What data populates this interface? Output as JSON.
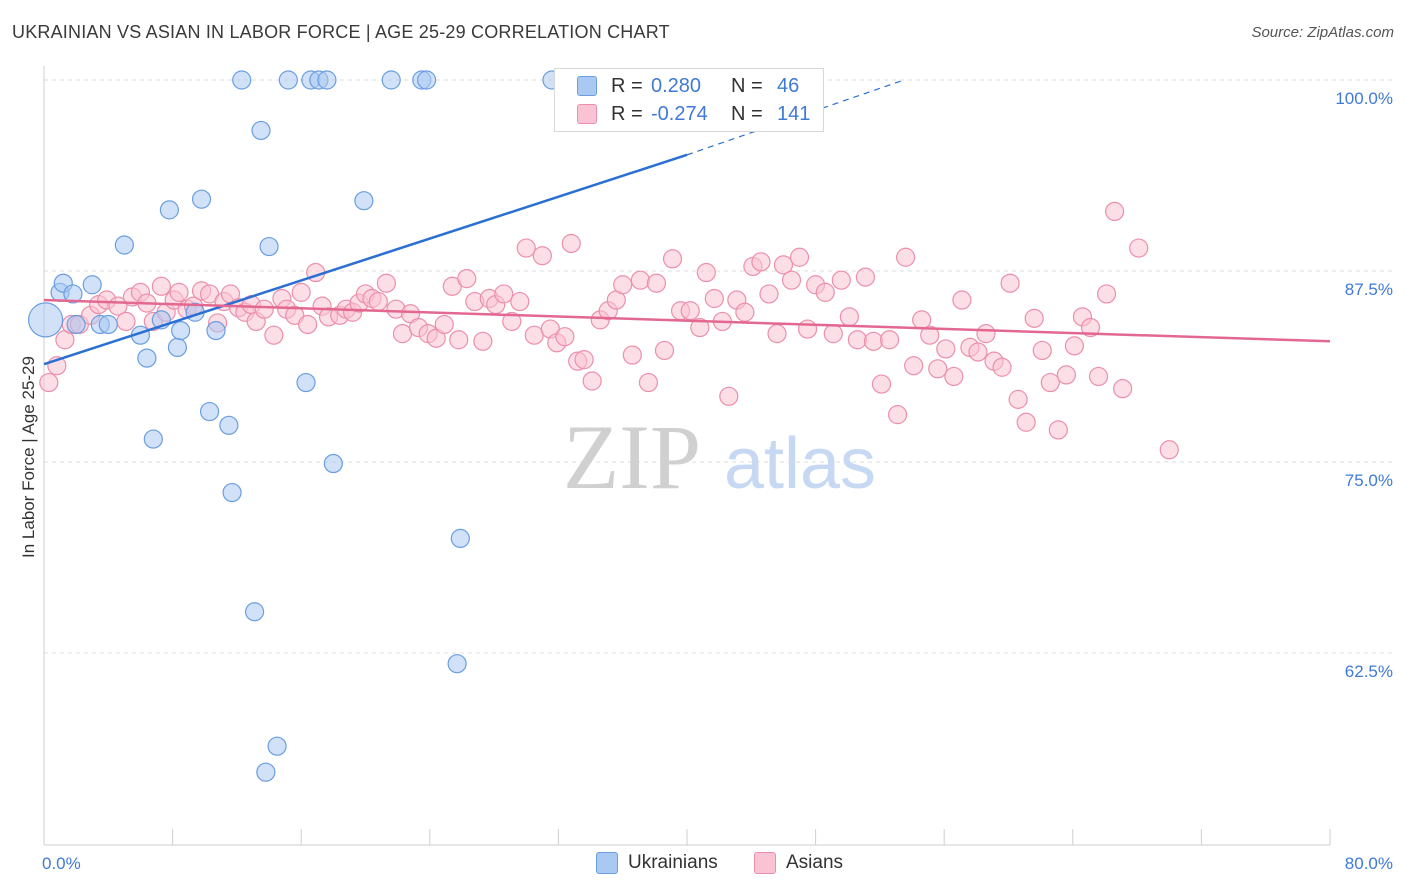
{
  "title": "UKRAINIAN VS ASIAN IN LABOR FORCE | AGE 25-29 CORRELATION CHART",
  "source": "Source: ZipAtlas.com",
  "watermark": {
    "zip": "ZIP",
    "atlas": "atlas"
  },
  "legend": {
    "r_label": "R =",
    "n_label": "N =",
    "rows": [
      {
        "r": "0.280",
        "n": "46",
        "color": "#a9c9f3",
        "edge": "#6a9ee0"
      },
      {
        "r": "-0.274",
        "n": "141",
        "color": "#f9c3d3",
        "edge": "#ec8fac"
      }
    ]
  },
  "bottom_legend": [
    "Ukrainians",
    "Asians"
  ],
  "chart_data": {
    "type": "scatter",
    "title": "UKRAINIAN VS ASIAN IN LABOR FORCE | AGE 25-29 CORRELATION CHART",
    "ylabel": "In Labor Force | Age 25-29",
    "xlim": [
      0,
      80
    ],
    "ylim": [
      52,
      102
    ],
    "x_tick_labels": [
      "0.0%",
      "80.0%"
    ],
    "y_ticks": [
      {
        "value": 100,
        "label": "100.0%"
      },
      {
        "value": 87.5,
        "label": "87.5%"
      },
      {
        "value": 75,
        "label": "75.0%"
      },
      {
        "value": 62.5,
        "label": "62.5%"
      }
    ],
    "grid": "horizontal dashed",
    "series": [
      {
        "name": "Ukrainians",
        "color": "#a9c9f3",
        "edge": "#6a9ee0",
        "line_color": "#2a6fd1",
        "trend": {
          "x0": 0,
          "y0": 81.4,
          "x1": 40,
          "y1": 95.1,
          "dash_x1": 53.5,
          "dash_y1": 100
        },
        "points": [
          [
            0.1,
            84.3
          ],
          [
            1.0,
            86.1
          ],
          [
            1.2,
            86.7
          ],
          [
            1.8,
            86.0
          ],
          [
            2.0,
            84.0
          ],
          [
            3.0,
            86.6
          ],
          [
            3.5,
            84.0
          ],
          [
            4.0,
            84.0
          ],
          [
            5.0,
            89.2
          ],
          [
            6.0,
            83.3
          ],
          [
            6.4,
            81.8
          ],
          [
            6.8,
            76.5
          ],
          [
            7.3,
            84.3
          ],
          [
            7.8,
            91.5
          ],
          [
            8.3,
            82.5
          ],
          [
            8.5,
            83.6
          ],
          [
            9.4,
            84.8
          ],
          [
            9.8,
            92.2
          ],
          [
            10.3,
            78.3
          ],
          [
            10.7,
            83.6
          ],
          [
            11.5,
            77.4
          ],
          [
            11.7,
            73.0
          ],
          [
            12.3,
            100.0
          ],
          [
            13.1,
            65.2
          ],
          [
            13.5,
            96.7
          ],
          [
            13.8,
            54.7
          ],
          [
            14.0,
            89.1
          ],
          [
            14.5,
            56.4
          ],
          [
            15.2,
            100.0
          ],
          [
            16.3,
            80.2
          ],
          [
            16.6,
            100.0
          ],
          [
            17.1,
            100.0
          ],
          [
            17.6,
            100.0
          ],
          [
            18.0,
            74.9
          ],
          [
            19.9,
            92.1
          ],
          [
            21.6,
            100.0
          ],
          [
            23.5,
            100.0
          ],
          [
            23.8,
            100.0
          ],
          [
            25.9,
            70.0
          ],
          [
            25.7,
            61.8
          ],
          [
            31.6,
            100.0
          ],
          [
            33.0,
            100.0
          ],
          [
            34.0,
            100.0
          ],
          [
            36.0,
            100.0
          ]
        ]
      },
      {
        "name": "Asians",
        "color": "#f9c3d3",
        "edge": "#ec8fac",
        "line_color": "#e36891",
        "trend": {
          "x0": 0,
          "y0": 85.6,
          "x1": 80,
          "y1": 82.9
        },
        "points": [
          [
            0.3,
            80.2
          ],
          [
            0.8,
            81.3
          ],
          [
            1.3,
            83.0
          ],
          [
            1.7,
            84.0
          ],
          [
            2.2,
            84.0
          ],
          [
            2.9,
            84.6
          ],
          [
            3.4,
            85.3
          ],
          [
            3.9,
            85.6
          ],
          [
            4.6,
            85.2
          ],
          [
            5.1,
            84.2
          ],
          [
            5.5,
            85.8
          ],
          [
            6.0,
            86.1
          ],
          [
            6.4,
            85.4
          ],
          [
            6.8,
            84.2
          ],
          [
            7.3,
            86.5
          ],
          [
            7.6,
            84.8
          ],
          [
            8.1,
            85.6
          ],
          [
            8.4,
            86.1
          ],
          [
            8.9,
            85.0
          ],
          [
            9.3,
            85.2
          ],
          [
            9.8,
            86.2
          ],
          [
            10.3,
            86.0
          ],
          [
            10.8,
            84.1
          ],
          [
            11.2,
            85.5
          ],
          [
            11.6,
            86.0
          ],
          [
            12.1,
            85.1
          ],
          [
            12.5,
            84.8
          ],
          [
            12.9,
            85.3
          ],
          [
            13.2,
            84.2
          ],
          [
            13.7,
            85.0
          ],
          [
            14.3,
            83.3
          ],
          [
            14.8,
            85.7
          ],
          [
            15.1,
            85.0
          ],
          [
            15.6,
            84.6
          ],
          [
            16.0,
            86.1
          ],
          [
            16.4,
            84.0
          ],
          [
            16.9,
            87.4
          ],
          [
            17.3,
            85.2
          ],
          [
            17.7,
            84.5
          ],
          [
            18.4,
            84.6
          ],
          [
            18.8,
            85.0
          ],
          [
            19.2,
            84.8
          ],
          [
            19.6,
            85.4
          ],
          [
            20.0,
            86.0
          ],
          [
            20.4,
            85.7
          ],
          [
            20.8,
            85.5
          ],
          [
            21.3,
            86.7
          ],
          [
            21.9,
            85.0
          ],
          [
            22.3,
            83.4
          ],
          [
            22.8,
            84.7
          ],
          [
            23.3,
            83.8
          ],
          [
            23.9,
            83.4
          ],
          [
            24.4,
            83.1
          ],
          [
            24.9,
            84.0
          ],
          [
            25.4,
            86.5
          ],
          [
            25.8,
            83.0
          ],
          [
            26.3,
            87.0
          ],
          [
            26.8,
            85.5
          ],
          [
            27.3,
            82.9
          ],
          [
            27.7,
            85.7
          ],
          [
            28.1,
            85.3
          ],
          [
            28.6,
            86.0
          ],
          [
            29.1,
            84.2
          ],
          [
            29.6,
            85.5
          ],
          [
            30.0,
            89.0
          ],
          [
            30.5,
            83.3
          ],
          [
            31.0,
            88.5
          ],
          [
            31.5,
            83.7
          ],
          [
            31.9,
            82.8
          ],
          [
            32.4,
            83.2
          ],
          [
            32.8,
            89.3
          ],
          [
            33.2,
            81.6
          ],
          [
            33.6,
            81.7
          ],
          [
            34.1,
            80.3
          ],
          [
            34.6,
            84.3
          ],
          [
            35.1,
            84.9
          ],
          [
            35.6,
            85.6
          ],
          [
            36.0,
            86.6
          ],
          [
            36.6,
            82.0
          ],
          [
            37.1,
            86.9
          ],
          [
            37.6,
            80.2
          ],
          [
            38.1,
            86.7
          ],
          [
            38.6,
            82.3
          ],
          [
            39.1,
            88.3
          ],
          [
            39.6,
            84.9
          ],
          [
            40.2,
            84.9
          ],
          [
            40.8,
            83.8
          ],
          [
            41.2,
            87.4
          ],
          [
            41.7,
            85.7
          ],
          [
            42.2,
            84.2
          ],
          [
            42.6,
            79.3
          ],
          [
            43.1,
            85.6
          ],
          [
            43.6,
            84.8
          ],
          [
            44.1,
            87.8
          ],
          [
            44.6,
            88.1
          ],
          [
            45.1,
            86.0
          ],
          [
            45.6,
            83.4
          ],
          [
            46.0,
            87.9
          ],
          [
            46.5,
            86.9
          ],
          [
            47.0,
            88.4
          ],
          [
            47.5,
            83.7
          ],
          [
            48.0,
            86.6
          ],
          [
            48.6,
            86.1
          ],
          [
            49.1,
            83.4
          ],
          [
            49.6,
            86.9
          ],
          [
            50.1,
            84.5
          ],
          [
            50.6,
            83.0
          ],
          [
            51.1,
            87.1
          ],
          [
            51.6,
            82.9
          ],
          [
            52.1,
            80.1
          ],
          [
            52.6,
            83.0
          ],
          [
            53.1,
            78.1
          ],
          [
            53.6,
            88.4
          ],
          [
            54.1,
            81.3
          ],
          [
            54.6,
            84.3
          ],
          [
            55.1,
            83.3
          ],
          [
            55.6,
            81.1
          ],
          [
            56.1,
            82.4
          ],
          [
            56.6,
            80.6
          ],
          [
            57.1,
            85.6
          ],
          [
            57.6,
            82.5
          ],
          [
            58.1,
            82.2
          ],
          [
            58.6,
            83.4
          ],
          [
            59.1,
            81.6
          ],
          [
            59.6,
            81.2
          ],
          [
            60.1,
            86.7
          ],
          [
            60.6,
            79.1
          ],
          [
            61.1,
            77.6
          ],
          [
            61.6,
            84.4
          ],
          [
            62.1,
            82.3
          ],
          [
            62.6,
            80.2
          ],
          [
            63.1,
            77.1
          ],
          [
            63.6,
            80.7
          ],
          [
            64.1,
            82.6
          ],
          [
            64.6,
            84.5
          ],
          [
            65.1,
            83.8
          ],
          [
            65.6,
            80.6
          ],
          [
            66.1,
            86.0
          ],
          [
            66.6,
            91.4
          ],
          [
            67.1,
            79.8
          ],
          [
            68.1,
            89.0
          ],
          [
            70.0,
            75.8
          ]
        ]
      }
    ]
  }
}
